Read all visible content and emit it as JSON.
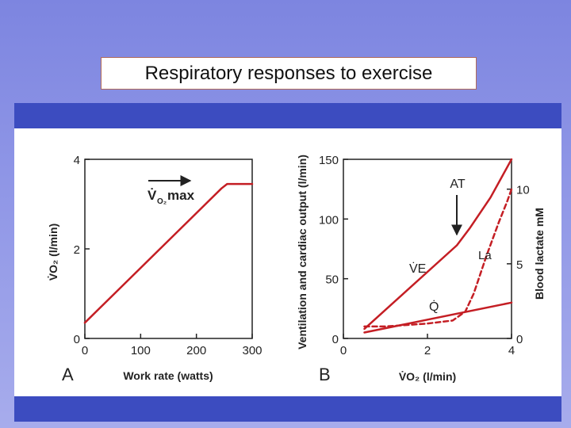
{
  "slide": {
    "title": "Respiratory responses to exercise"
  },
  "colors": {
    "curve": "#c41e24",
    "band": "#3c4cc0",
    "axis": "#222222"
  },
  "chart_data": [
    {
      "panel_letter": "A",
      "type": "line",
      "xlabel": "Work rate (watts)",
      "ylabel": "V̇O₂ (l/min)",
      "xlim": [
        0,
        300
      ],
      "ylim": [
        0,
        4
      ],
      "x_ticks": [
        0,
        100,
        200,
        300
      ],
      "y_ticks": [
        0,
        2,
        4
      ],
      "series": [
        {
          "name": "VO2",
          "style": "solid",
          "x": [
            0,
            245,
            255,
            300
          ],
          "y": [
            0.35,
            3.35,
            3.45,
            3.45
          ]
        }
      ],
      "annotation": {
        "text_main": "V̇",
        "text_sub": "O₂",
        "text_tail": "max",
        "arrow": "right"
      }
    },
    {
      "panel_letter": "B",
      "type": "line",
      "xlabel": "V̇O₂ (l/min)",
      "ylabel": "Ventilation and cardiac output (l/min)",
      "ylabel_right": "Blood lactate mM",
      "xlim": [
        0,
        4
      ],
      "ylim": [
        0,
        150
      ],
      "ylim_right": [
        0,
        12
      ],
      "x_ticks": [
        0,
        2,
        4
      ],
      "y_ticks": [
        0,
        50,
        100,
        150
      ],
      "y_ticks_right": [
        0,
        5,
        10
      ],
      "series": [
        {
          "name": "VE",
          "label": "V̇E",
          "style": "solid",
          "axis": "left",
          "x": [
            0.5,
            2.7,
            3.0,
            3.5,
            4.0
          ],
          "y": [
            8,
            78,
            92,
            118,
            150
          ]
        },
        {
          "name": "Q",
          "label": "Q̇",
          "style": "solid",
          "axis": "left",
          "x": [
            0.5,
            4.0
          ],
          "y": [
            5,
            30
          ]
        },
        {
          "name": "La",
          "label": "La",
          "style": "dashed",
          "axis": "right",
          "x": [
            0.5,
            1.0,
            2.0,
            2.6,
            2.9,
            3.1,
            3.4,
            3.7,
            3.9,
            4.0
          ],
          "y": [
            0.8,
            0.8,
            1.0,
            1.2,
            1.8,
            3.0,
            5.5,
            7.8,
            9.2,
            10
          ]
        }
      ],
      "annotation": {
        "text": "AT",
        "arrow": "down",
        "at_x": 2.7
      }
    }
  ]
}
